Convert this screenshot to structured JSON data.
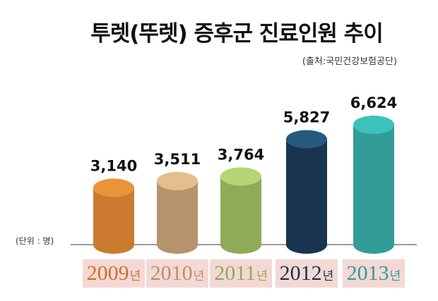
{
  "title": "투렛(뚜렛) 증후군 진료인원 추이",
  "source": "(출처:국민건강보험공단)",
  "unit_label": "(단위 : 명)",
  "year_suffix": "년",
  "chart_data": {
    "type": "bar",
    "title": "투렛(뚜렛) 증후군 진료인원 추이",
    "ylabel": "(단위 : 명)",
    "ylim": [
      0,
      6624
    ],
    "categories": [
      "2009",
      "2010",
      "2011",
      "2012",
      "2013"
    ],
    "values": [
      3140,
      3511,
      3764,
      5827,
      6624
    ],
    "value_labels": [
      "3,140",
      "3,511",
      "3,764",
      "5,827",
      "6,624"
    ],
    "colors": [
      {
        "body": "#cb7a2f",
        "top": "#ea9439",
        "label": "#c8742d"
      },
      {
        "body": "#b7936b",
        "top": "#e2bf8b",
        "label": "#b7936b"
      },
      {
        "body": "#8fab57",
        "top": "#b4d674",
        "label": "#8fab57"
      },
      {
        "body": "#19344f",
        "top": "#275a80",
        "label": "#19344f"
      },
      {
        "body": "#329c99",
        "top": "#3cc2bc",
        "label": "#329c99"
      }
    ]
  }
}
